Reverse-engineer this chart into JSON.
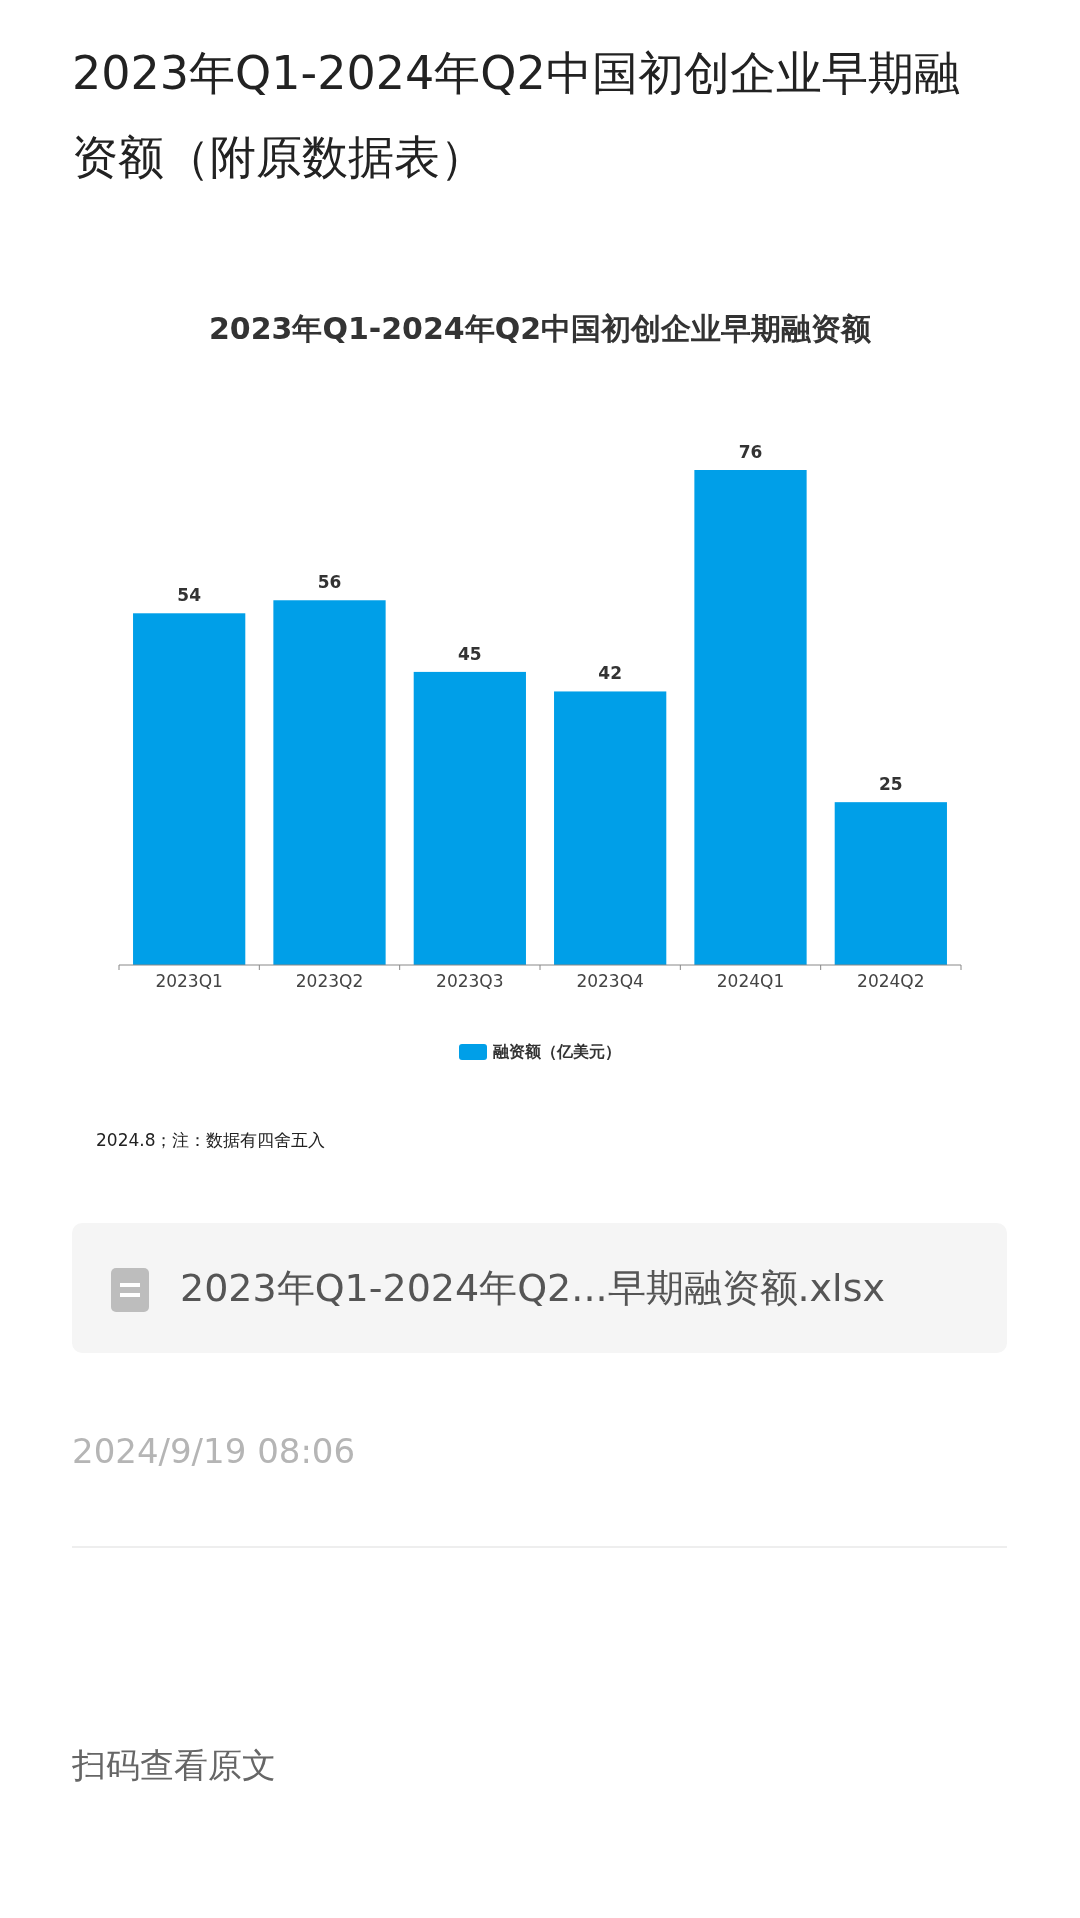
{
  "chart_data": {
    "type": "bar",
    "title": "2023年Q1-2024年Q2中国初创企业早期融资额（附原数据表）",
    "subtitle": "2023年Q1-2024年Q2中国初创企业早期融资额",
    "categories": [
      "2023Q1",
      "2023Q2",
      "2023Q3",
      "2023Q4",
      "2024Q1",
      "2024Q2"
    ],
    "series": [
      {
        "name": "融资额（亿美元）",
        "color": "#009fe8",
        "values": [
          54,
          56,
          45,
          42,
          76,
          25
        ]
      }
    ],
    "data_labels": true,
    "legend": "bottom",
    "annotations": [
      "2024.8；注：数据有四舍五入",
      "2023年Q1-2024年Q2...早期融资额.xlsx",
      "2024/9/19 08:06",
      "扫码查看原文"
    ]
  }
}
